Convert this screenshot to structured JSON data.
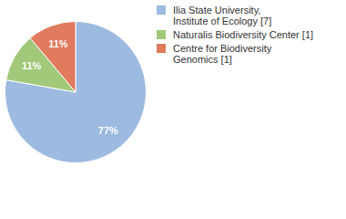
{
  "chart_data": {
    "type": "pie",
    "categories": [
      "Ilia State University,\nInstitute of Ecology [7]",
      "Naturalis Biodiversity Center [1]",
      "Centre for Biodiversity\nGenomics [1]"
    ],
    "values": [
      77,
      11,
      11
    ],
    "value_labels": [
      "77%",
      "11%",
      "11%"
    ],
    "colors": [
      "#9dbae0",
      "#a2c879",
      "#e07b5e"
    ],
    "data_labels": true,
    "legend": "top right"
  }
}
